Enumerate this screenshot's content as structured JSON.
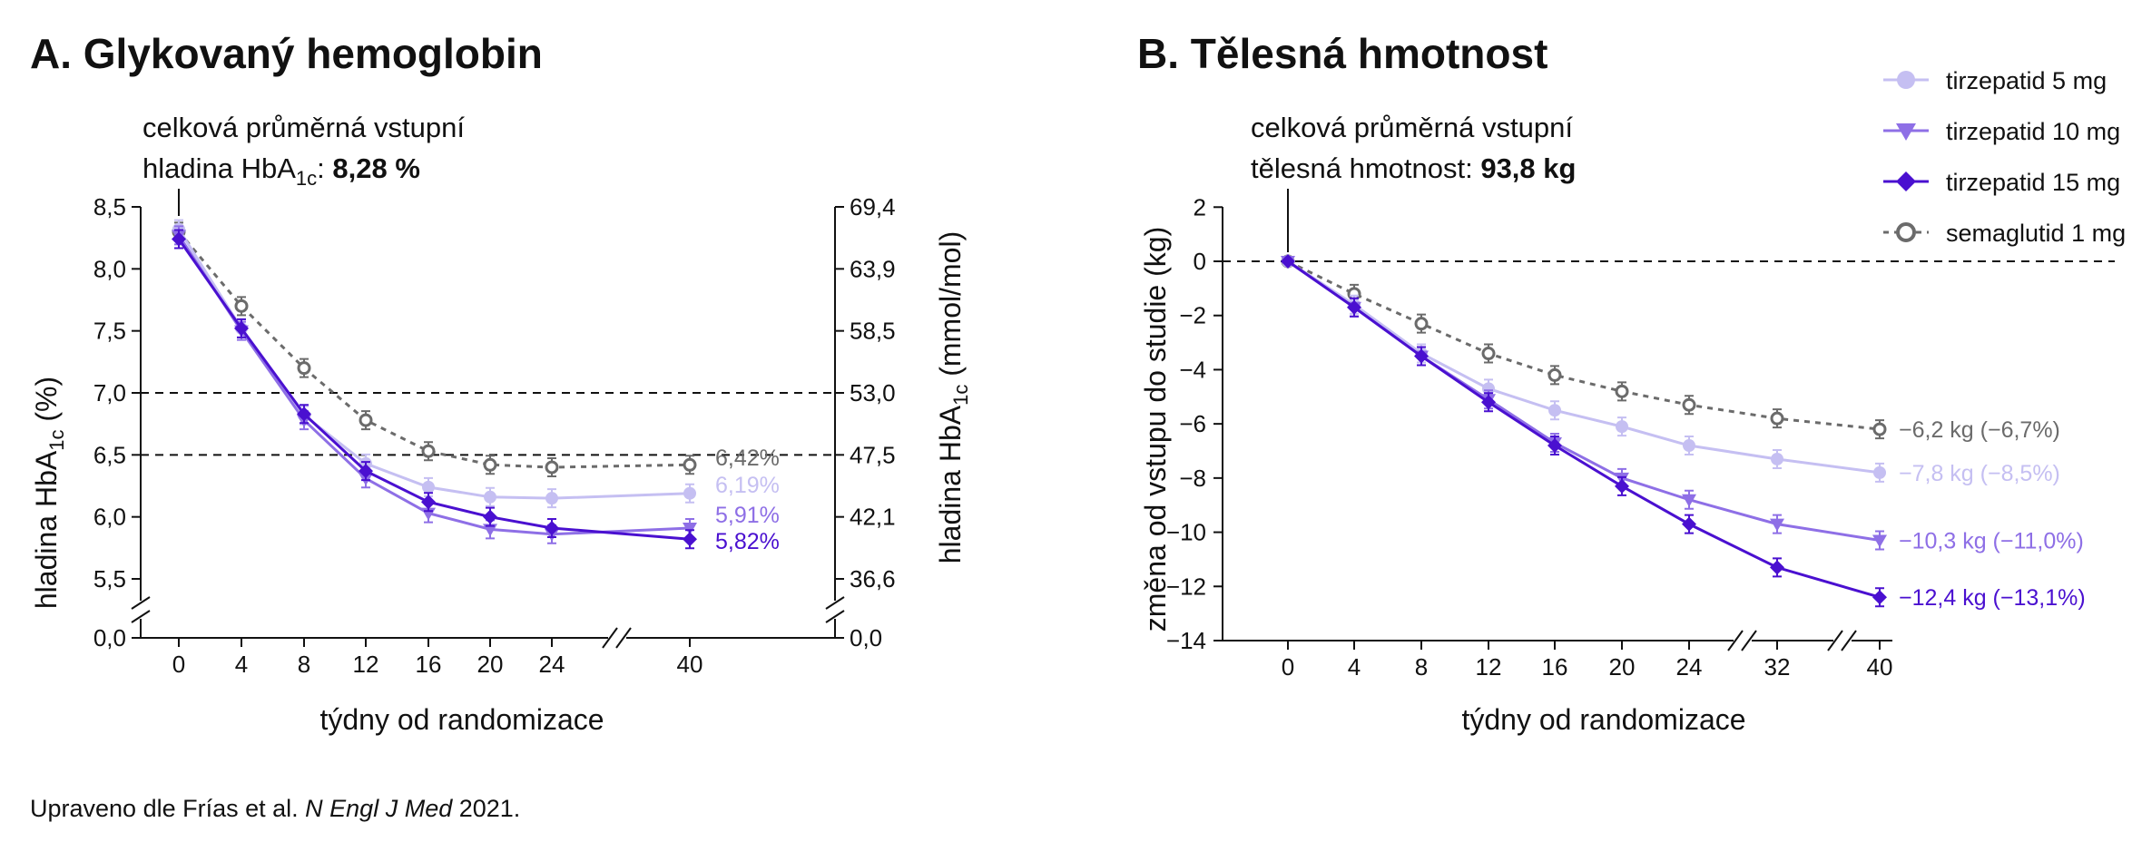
{
  "colors": {
    "tirz5": "#c5bff2",
    "tirz10": "#8e6fe6",
    "tirz15": "#4a10d0",
    "sema": "#6b6b6b",
    "axis": "#111111"
  },
  "legend": {
    "items": [
      {
        "label": "tirzepatid 5 mg",
        "marker": "circle",
        "color_key": "tirz5"
      },
      {
        "label": "tirzepatid 10 mg",
        "marker": "triangle-down",
        "color_key": "tirz10"
      },
      {
        "label": "tirzepatid 15 mg",
        "marker": "diamond",
        "color_key": "tirz15"
      },
      {
        "label": "semaglutid 1 mg",
        "marker": "open-circle",
        "color_key": "sema"
      }
    ]
  },
  "panelA": {
    "title": "A. Glykovaný hemoglobin",
    "annot_line1": "celková průměrná vstupní",
    "annot_line2_prefix": "hladina HbA",
    "annot_line2_sub": "1c",
    "annot_line2_mid": ": ",
    "annot_line2_bold": "8,28 %",
    "ylabel_prefix": "hladina HbA",
    "ylabel_sub": "1c",
    "ylabel_suffix": "  (%)",
    "y2label_prefix": "hladina HbA",
    "y2label_sub": "1c",
    "y2label_suffix": "  (mmol/mol)",
    "xlabel": "týdny od randomizace"
  },
  "panelB": {
    "title": "B. Tělesná hmotnost",
    "annot_line1": "celková průměrná vstupní",
    "annot_line2_prefix": "tělesná hmotnost: ",
    "annot_line2_bold": "93,8 kg",
    "ylabel": "změna od vstupu do studie (kg)",
    "xlabel": "týdny od randomizace"
  },
  "footnote": {
    "prefix": "Upraveno dle Frías et al. ",
    "italic": "N Engl J Med",
    "suffix": " 2021."
  },
  "chart_data": [
    {
      "type": "line",
      "x": [
        0,
        4,
        8,
        12,
        16,
        20,
        24,
        40
      ],
      "xticks": [
        "0",
        "4",
        "8",
        "12",
        "16",
        "20",
        "24",
        "40"
      ],
      "axis_break_x": true,
      "axis_break_y": true,
      "yticks": [
        "0,0",
        "5,5",
        "6,0",
        "6,5",
        "7,0",
        "7,5",
        "8,0",
        "8,5"
      ],
      "ytick_values": [
        0,
        5.5,
        6.0,
        6.5,
        7.0,
        7.5,
        8.0,
        8.5
      ],
      "ylim": [
        5.25,
        8.5
      ],
      "y2ticks": [
        "0,0",
        "36,6",
        "42,1",
        "47,5",
        "53,0",
        "58,5",
        "63,9",
        "69,4"
      ],
      "reference_lines": [
        6.5,
        7.0
      ],
      "series": [
        {
          "name": "tirzepatid 5 mg",
          "color_key": "tirz5",
          "marker": "circle",
          "dashed": false,
          "values": [
            8.32,
            7.52,
            6.82,
            6.43,
            6.24,
            6.16,
            6.15,
            6.19
          ],
          "end_label": "6,19%"
        },
        {
          "name": "tirzepatid 10 mg",
          "color_key": "tirz10",
          "marker": "triangle-down",
          "dashed": false,
          "values": [
            8.27,
            7.5,
            6.78,
            6.31,
            6.03,
            5.9,
            5.86,
            5.91
          ],
          "end_label": "5,91%"
        },
        {
          "name": "tirzepatid 15 mg",
          "color_key": "tirz15",
          "marker": "diamond",
          "dashed": false,
          "values": [
            8.24,
            7.52,
            6.83,
            6.37,
            6.12,
            6.0,
            5.91,
            5.82
          ],
          "end_label": "5,82%"
        },
        {
          "name": "semaglutid 1 mg",
          "color_key": "sema",
          "marker": "open-circle",
          "dashed": true,
          "values": [
            8.3,
            7.7,
            7.2,
            6.78,
            6.53,
            6.42,
            6.4,
            6.42
          ],
          "end_label": "6,42%"
        }
      ]
    },
    {
      "type": "line",
      "x": [
        0,
        4,
        8,
        12,
        16,
        20,
        24,
        32,
        40
      ],
      "xticks": [
        "0",
        "4",
        "8",
        "12",
        "16",
        "20",
        "24",
        "32",
        "40"
      ],
      "axis_break_x": true,
      "yticks": [
        "2",
        "0",
        "−2",
        "−4",
        "−6",
        "−8",
        "−10",
        "−12",
        "−14"
      ],
      "ytick_values": [
        2,
        0,
        -2,
        -4,
        -6,
        -8,
        -10,
        -12,
        -14
      ],
      "ylim": [
        -14,
        2
      ],
      "reference_lines": [
        0
      ],
      "series": [
        {
          "name": "tirzepatid 5 mg",
          "color_key": "tirz5",
          "marker": "circle",
          "dashed": false,
          "values": [
            0,
            -1.6,
            -3.4,
            -4.7,
            -5.5,
            -6.1,
            -6.8,
            -7.3,
            -7.8
          ],
          "end_label": "−7,8 kg (−8,5%)"
        },
        {
          "name": "tirzepatid 10 mg",
          "color_key": "tirz10",
          "marker": "triangle-down",
          "dashed": false,
          "values": [
            0,
            -1.7,
            -3.5,
            -5.1,
            -6.7,
            -8.0,
            -8.8,
            -9.7,
            -10.3
          ],
          "end_label": "−10,3 kg (−11,0%)"
        },
        {
          "name": "tirzepatid 15 mg",
          "color_key": "tirz15",
          "marker": "diamond",
          "dashed": false,
          "values": [
            0,
            -1.7,
            -3.5,
            -5.2,
            -6.8,
            -8.3,
            -9.7,
            -11.3,
            -12.4
          ],
          "end_label": "−12,4 kg (−13,1%)"
        },
        {
          "name": "semaglutid 1 mg",
          "color_key": "sema",
          "marker": "open-circle",
          "dashed": true,
          "values": [
            0,
            -1.2,
            -2.3,
            -3.4,
            -4.2,
            -4.8,
            -5.3,
            -5.8,
            -6.2
          ],
          "end_label": "−6,2 kg (−6,7%)"
        }
      ]
    }
  ]
}
